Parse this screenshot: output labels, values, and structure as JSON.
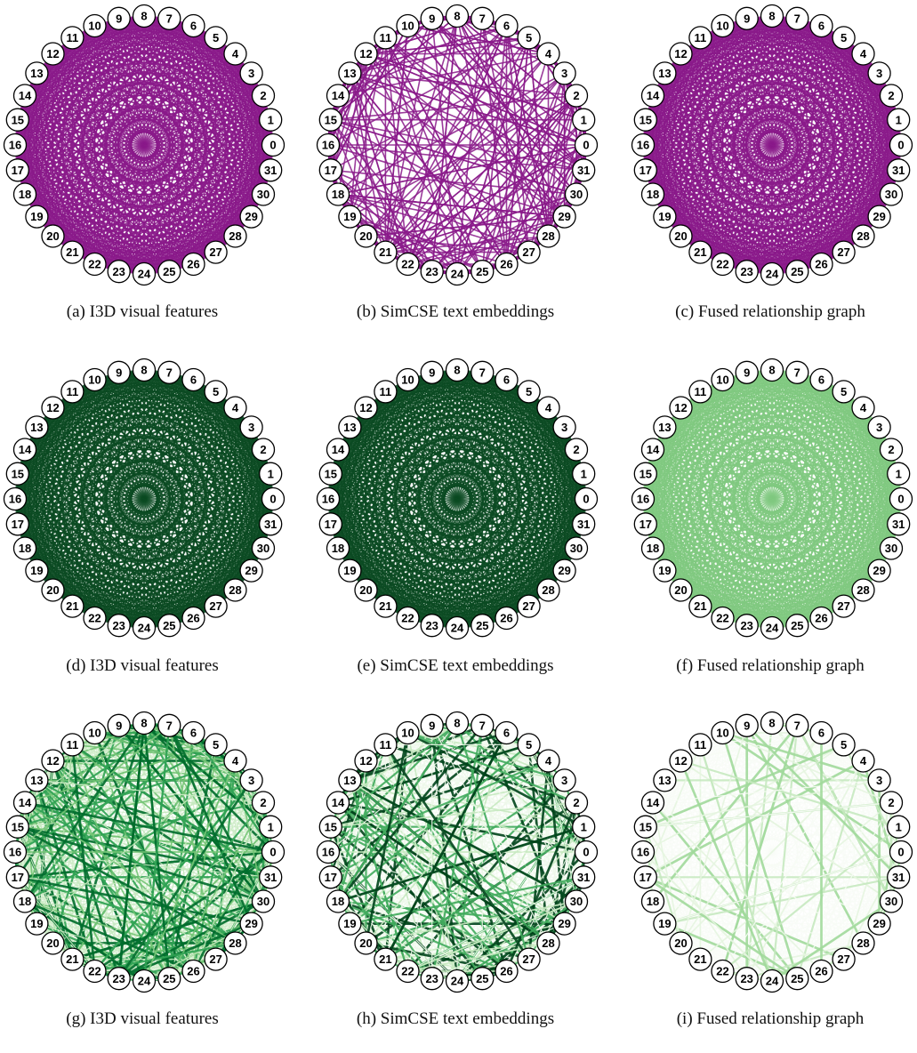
{
  "node_count": 32,
  "panels": [
    {
      "id": "a",
      "caption": "(a)  I3D visual features",
      "mode": "dense",
      "color": "#8a1a8a",
      "seed": 1
    },
    {
      "id": "b",
      "caption": "(b)  SimCSE text embeddings",
      "mode": "random",
      "color": "#8a1a8a",
      "seed": 2,
      "edges": 260
    },
    {
      "id": "c",
      "caption": "(c)  Fused relationship graph",
      "mode": "dense",
      "color": "#8a1a8a",
      "seed": 3
    },
    {
      "id": "d",
      "caption": "(d)  I3D visual features",
      "mode": "dense",
      "color": "#0b4a22",
      "seed": 4
    },
    {
      "id": "e",
      "caption": "(e)  SimCSE text embeddings",
      "mode": "dense",
      "color": "#0b4a22",
      "seed": 5
    },
    {
      "id": "f",
      "caption": "(f)  Fused relationship graph",
      "mode": "dense",
      "color": "#7fc97f",
      "seed": 6
    },
    {
      "id": "g",
      "caption": "(g)  I3D visual features",
      "mode": "weighted",
      "palette": [
        "#c7e9c0",
        "#74c476",
        "#31a354",
        "#006d2c"
      ],
      "seed": 7,
      "edges": 320
    },
    {
      "id": "h",
      "caption": "(h)  SimCSE text embeddings",
      "mode": "weighted",
      "palette": [
        "#edf8e9",
        "#c7e9c0",
        "#41ab5d",
        "#00441b"
      ],
      "seed": 8,
      "edges": 260
    },
    {
      "id": "i",
      "caption": "(i)  Fused relationship graph",
      "mode": "weighted",
      "palette": [
        "#f7fcf5",
        "#e5f5e0",
        "#c7e9c0",
        "#a1d99b"
      ],
      "seed": 9,
      "edges": 110
    }
  ]
}
